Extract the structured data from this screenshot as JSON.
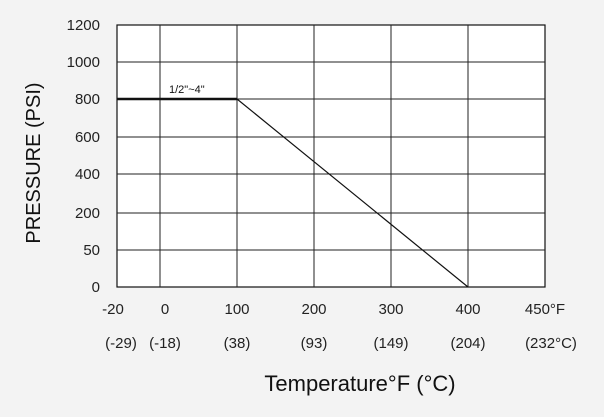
{
  "chart_data": {
    "type": "line",
    "title": "",
    "ylabel": "PRESSURE (PSI)",
    "xlabel": "Temperature°F (°C)",
    "grid": true,
    "y_ticks": [
      "0",
      "50",
      "200",
      "400",
      "600",
      "800",
      "1000",
      "1200"
    ],
    "x_ticks_f": [
      "-20",
      "0",
      "100",
      "200",
      "300",
      "400",
      "450°F"
    ],
    "x_ticks_c": [
      "(-29)",
      "(-18)",
      "(38)",
      "(93)",
      "(149)",
      "(204)",
      "(232°C)"
    ],
    "series": [
      {
        "name": "1/2\"~4\"",
        "x": [
          "-20",
          "100",
          "400"
        ],
        "y": [
          "800",
          "800",
          "0"
        ]
      }
    ]
  }
}
